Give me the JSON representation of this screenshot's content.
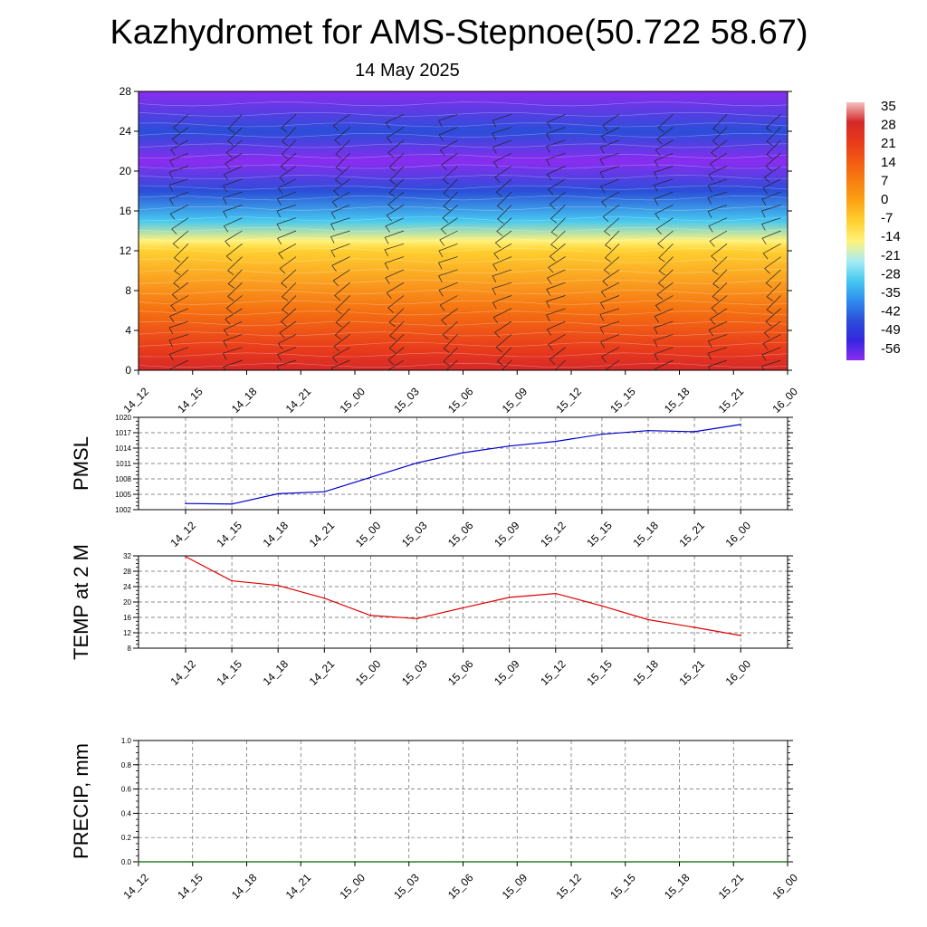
{
  "title": "Kazhydromet for AMS-Stepnoe(50.722 58.67)",
  "subtitle": "14 May 2025",
  "time_labels": [
    "14_12",
    "14_15",
    "14_18",
    "14_21",
    "15_00",
    "15_03",
    "15_06",
    "15_09",
    "15_12",
    "15_15",
    "15_18",
    "15_21",
    "16_00"
  ],
  "colorbar": {
    "labels": [
      "35",
      "28",
      "21",
      "14",
      "7",
      "0",
      "-7",
      "-14",
      "-21",
      "-28",
      "-35",
      "-42",
      "-49",
      "-56"
    ],
    "colors": [
      "#f2c0c0",
      "#d62828",
      "#e83a1c",
      "#f25c12",
      "#f78010",
      "#fba414",
      "#ffd030",
      "#fff27a",
      "#a8ecf4",
      "#46c8f0",
      "#2f8cf0",
      "#2a4ed8",
      "#3626e0",
      "#8a2cf0"
    ]
  },
  "chart_data": [
    {
      "type": "heatmap",
      "title": "",
      "xlabel": "",
      "ylabel": "",
      "x": [
        "14_12",
        "14_15",
        "14_18",
        "14_21",
        "15_00",
        "15_03",
        "15_06",
        "15_09",
        "15_12",
        "15_15",
        "15_18",
        "15_21",
        "16_00"
      ],
      "ylim": [
        0,
        28
      ],
      "yticks": [
        "0",
        "4",
        "8",
        "12",
        "16",
        "20",
        "24",
        "28"
      ],
      "description_levels": [
        {
          "level": 0,
          "value": 28
        },
        {
          "level": 2,
          "value": 21
        },
        {
          "level": 6,
          "value": 10
        },
        {
          "level": 12,
          "value": -7
        },
        {
          "level": 13,
          "value": -14
        },
        {
          "level": 15,
          "value": -28
        },
        {
          "level": 18,
          "value": -42
        },
        {
          "level": 21,
          "value": -56
        },
        {
          "level": 24,
          "value": -42
        },
        {
          "level": 28,
          "value": -56
        }
      ],
      "overlay": "wind barbs"
    },
    {
      "type": "line",
      "title": "",
      "xlabel": "",
      "ylabel": "PMSL",
      "x": [
        "14_12",
        "14_15",
        "14_18",
        "14_21",
        "15_00",
        "15_03",
        "15_06",
        "15_09",
        "15_12",
        "15_15",
        "15_18",
        "15_21",
        "16_00"
      ],
      "series": [
        {
          "values": [
            1003.2,
            1003.1,
            1005.1,
            1005.5,
            1008.3,
            1011.1,
            1013.1,
            1014.4,
            1015.3,
            1016.7,
            1017.4,
            1017.2,
            1018.6
          ],
          "color": "#0000cc"
        }
      ],
      "ylim": [
        1002,
        1020
      ],
      "yticks": [
        "1002",
        "1005",
        "1008",
        "1011",
        "1014",
        "1017",
        "1020"
      ],
      "grid": true
    },
    {
      "type": "line",
      "title": "",
      "xlabel": "",
      "ylabel": "TEMP at 2 M",
      "x": [
        "14_12",
        "14_15",
        "14_18",
        "14_21",
        "15_00",
        "15_03",
        "15_06",
        "15_09",
        "15_12",
        "15_15",
        "15_18",
        "15_21",
        "16_00"
      ],
      "series": [
        {
          "values": [
            31.8,
            25.5,
            24.3,
            21.0,
            16.5,
            15.7,
            18.5,
            21.2,
            22.2,
            19.0,
            15.4,
            13.4,
            11.3
          ],
          "color": "#e00000"
        }
      ],
      "ylim": [
        8,
        32
      ],
      "yticks": [
        "8",
        "12",
        "16",
        "20",
        "24",
        "28",
        "32"
      ],
      "grid": true
    },
    {
      "type": "line",
      "title": "",
      "xlabel": "",
      "ylabel": "PRECIP, mm",
      "x": [
        "14_12",
        "14_15",
        "14_18",
        "14_21",
        "15_00",
        "15_03",
        "15_06",
        "15_09",
        "15_12",
        "15_15",
        "15_18",
        "15_21",
        "16_00"
      ],
      "series": [
        {
          "values": [
            0,
            0,
            0,
            0,
            0,
            0,
            0,
            0,
            0,
            0,
            0,
            0,
            0
          ],
          "color": "#006400"
        }
      ],
      "ylim": [
        0,
        1.0
      ],
      "yticks": [
        "0.0",
        "0.2",
        "0.4",
        "0.6",
        "0.8",
        "1.0"
      ],
      "grid": true
    }
  ]
}
